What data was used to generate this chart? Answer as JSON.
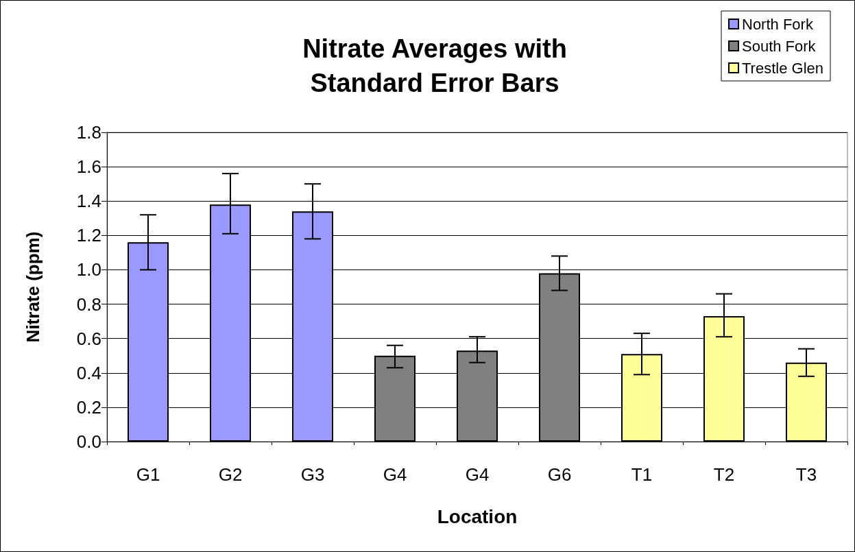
{
  "chart_data": {
    "type": "bar",
    "title": "Nitrate Averages with\nStandard Error Bars",
    "xlabel": "Location",
    "ylabel": "Nitrate (ppm)",
    "categories": [
      "G1",
      "G2",
      "G3",
      "G4",
      "G4",
      "G6",
      "T1",
      "T2",
      "T3"
    ],
    "series": [
      {
        "name": "North Fork",
        "color": "#9999ff",
        "values": [
          1.16,
          1.38,
          1.34,
          null,
          null,
          null,
          null,
          null,
          null
        ],
        "errors": [
          [
            1.0,
            1.32
          ],
          [
            1.21,
            1.56
          ],
          [
            1.18,
            1.5
          ],
          null,
          null,
          null,
          null,
          null,
          null
        ]
      },
      {
        "name": "South Fork",
        "color": "#808080",
        "values": [
          null,
          null,
          null,
          0.5,
          0.53,
          0.98,
          null,
          null,
          null
        ],
        "errors": [
          null,
          null,
          null,
          [
            0.43,
            0.56
          ],
          [
            0.46,
            0.61
          ],
          [
            0.88,
            1.08
          ],
          null,
          null,
          null
        ]
      },
      {
        "name": "Trestle Glen",
        "color": "#ffff99",
        "values": [
          null,
          null,
          null,
          null,
          null,
          null,
          0.51,
          0.73,
          0.46
        ],
        "errors": [
          null,
          null,
          null,
          null,
          null,
          null,
          [
            0.39,
            0.63
          ],
          [
            0.61,
            0.86
          ],
          [
            0.38,
            0.54
          ]
        ]
      }
    ],
    "ylim": [
      0,
      1.8
    ],
    "yticks": [
      {
        "value": 0,
        "label": "0.0"
      },
      0.2,
      0.4,
      0.6,
      0.8,
      {
        "value": 1,
        "label": "1.0"
      },
      1.2,
      1.4,
      1.6,
      1.8
    ],
    "grid": "y",
    "legend": "top right"
  }
}
